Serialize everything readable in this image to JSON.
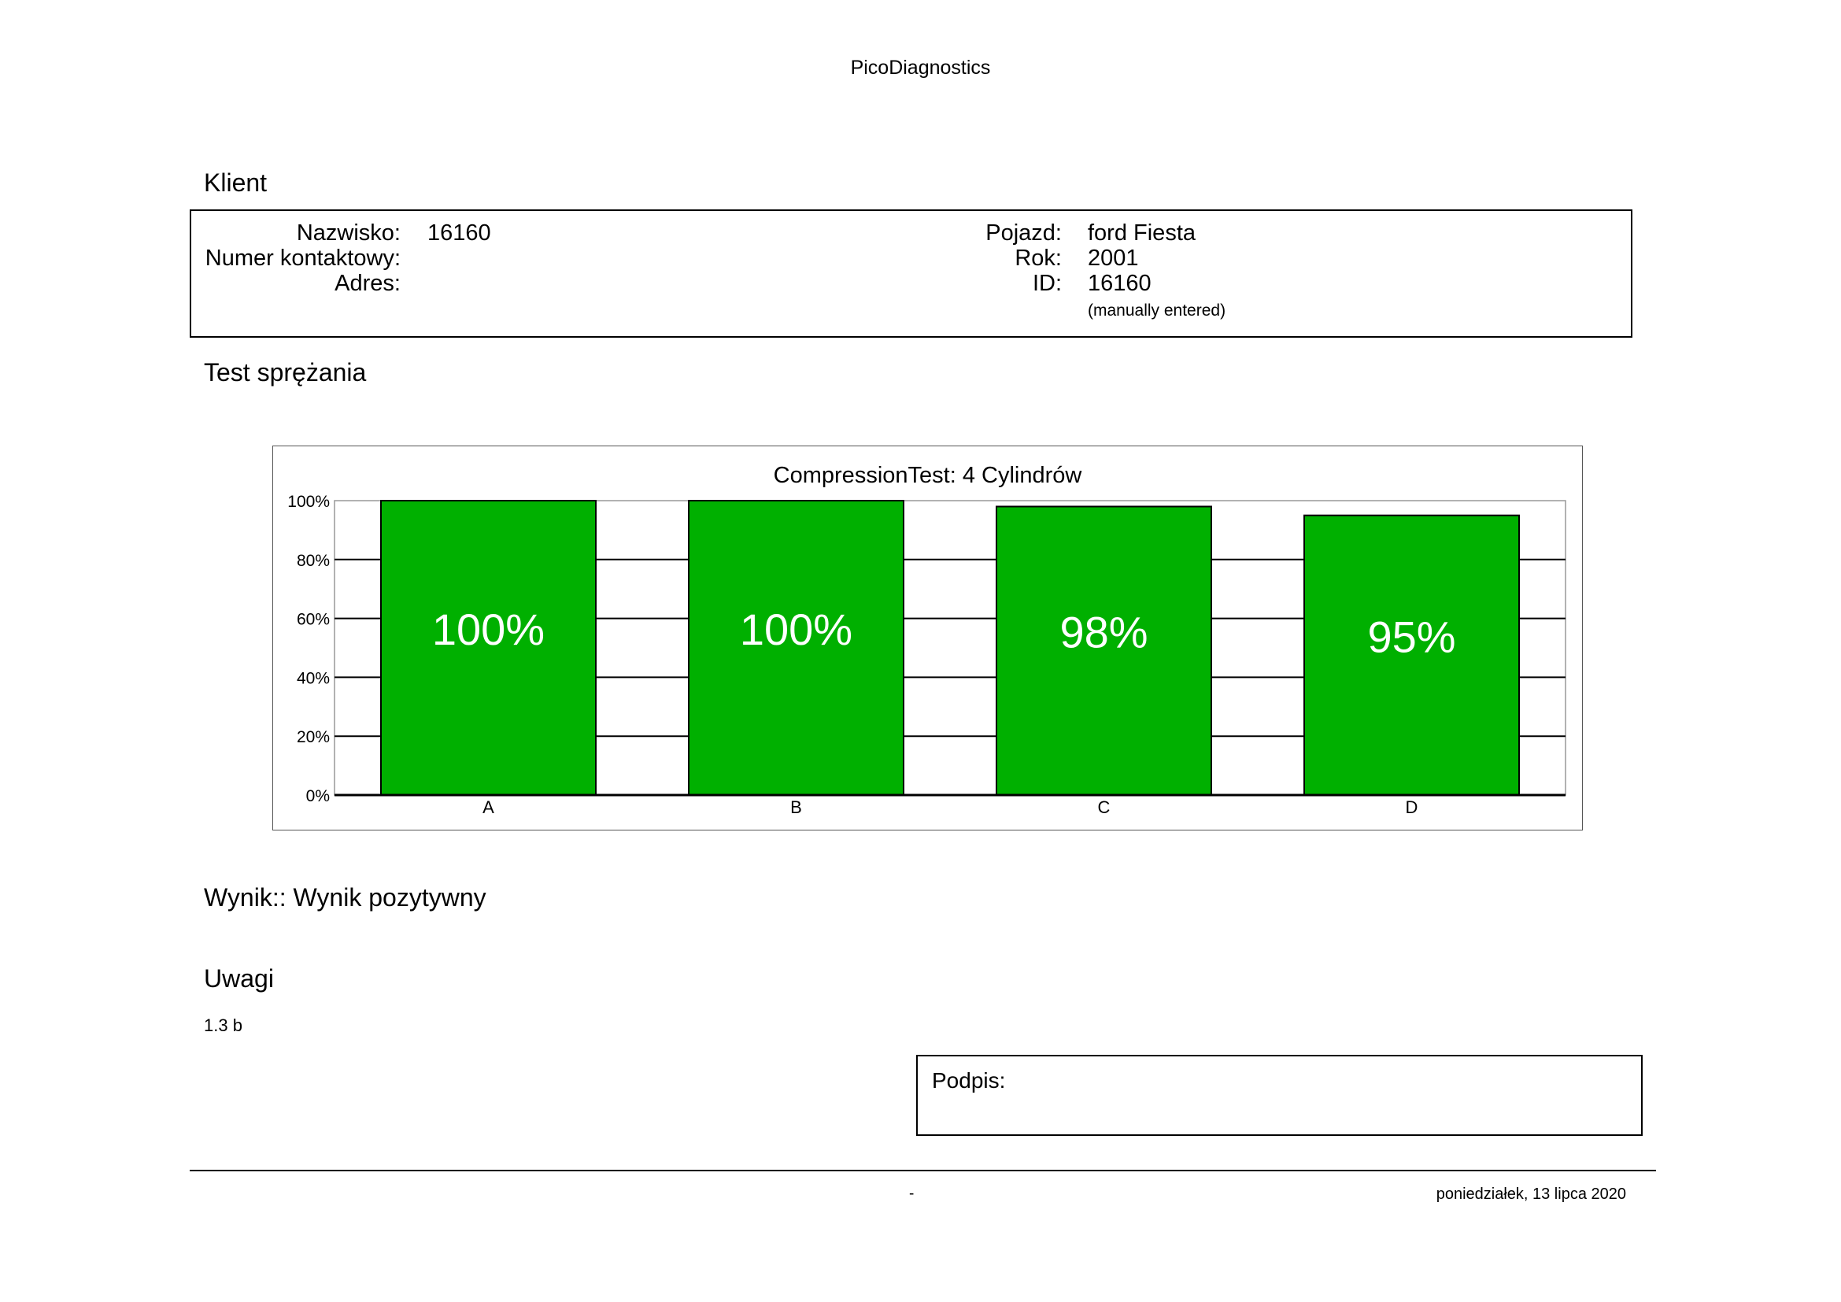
{
  "header": {
    "title": "PicoDiagnostics"
  },
  "client": {
    "section_title": "Klient",
    "name_label": "Nazwisko:",
    "name_value": "16160",
    "contact_label": "Numer kontaktowy:",
    "contact_value": "",
    "address_label": "Adres:",
    "address_value": "",
    "vehicle_label": "Pojazd:",
    "vehicle_value": "ford Fiesta",
    "year_label": "Rok:",
    "year_value": "2001",
    "id_label": "ID:",
    "id_value": "16160",
    "id_note": "(manually entered)"
  },
  "test": {
    "section_title": "Test sprężania"
  },
  "chart_data": {
    "type": "bar",
    "title": "CompressionTest: 4 Cylindrów",
    "categories": [
      "A",
      "B",
      "C",
      "D"
    ],
    "values": [
      100,
      100,
      98,
      95
    ],
    "data_labels": [
      "100%",
      "100%",
      "98%",
      "95%"
    ],
    "ylim": [
      0,
      100
    ],
    "yticks": [
      "0%",
      "20%",
      "40%",
      "60%",
      "80%",
      "100%"
    ],
    "ytick_values": [
      0,
      20,
      40,
      60,
      80,
      100
    ],
    "xlabel": "",
    "ylabel": "",
    "grid": true,
    "legend": "none",
    "bar_color": "#00b000"
  },
  "result": {
    "text": "Wynik:: Wynik pozytywny"
  },
  "remarks": {
    "section_title": "Uwagi",
    "text": "1.3 b"
  },
  "signature": {
    "label": "Podpis:"
  },
  "footer": {
    "page": "-",
    "date": "poniedziałek, 13 lipca 2020"
  }
}
